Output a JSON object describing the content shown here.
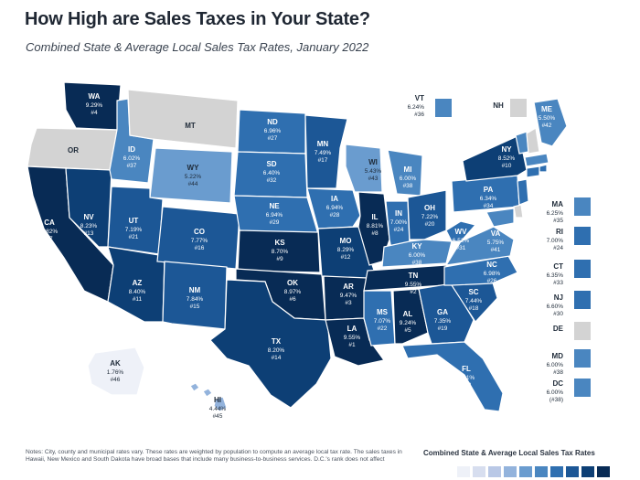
{
  "header": {
    "title": "How High are Sales Taxes in Your State?",
    "subtitle": "Combined State & Average Local Sales Tax Rates, January 2022"
  },
  "footer": {
    "notes": "Notes: City, county and municipal rates vary. These rates are weighted by population to compute an average local tax rate. The sales taxes in Hawaii, New Mexico and South Dakota have broad bases that include many business-to-business services. D.C.'s rank does not affect",
    "legend_title": "Combined State & Average Local Sales Tax Rates"
  },
  "colors": {
    "background": "#ffffff",
    "no_tax": "#d3d3d3",
    "border": "#ffffff",
    "text_dark": "#1e2a38",
    "text_light": "#ffffff",
    "legend_scale": [
      "#eef1f8",
      "#d7deef",
      "#b9c8e6",
      "#93b3dc",
      "#6a9ccf",
      "#4a86c0",
      "#2f6fb0",
      "#1c5796",
      "#0d3f75",
      "#082b55"
    ]
  },
  "states": [
    {
      "abbr": "WA",
      "rate": "9.29%",
      "rank": "#4"
    },
    {
      "abbr": "OR",
      "rate": "",
      "rank": ""
    },
    {
      "abbr": "CA",
      "rate": "8.82%",
      "rank": "#7"
    },
    {
      "abbr": "NV",
      "rate": "8.23%",
      "rank": "#13"
    },
    {
      "abbr": "ID",
      "rate": "6.02%",
      "rank": "#37"
    },
    {
      "abbr": "MT",
      "rate": "",
      "rank": ""
    },
    {
      "abbr": "WY",
      "rate": "5.22%",
      "rank": "#44"
    },
    {
      "abbr": "UT",
      "rate": "7.19%",
      "rank": "#21"
    },
    {
      "abbr": "AZ",
      "rate": "8.40%",
      "rank": "#11"
    },
    {
      "abbr": "CO",
      "rate": "7.77%",
      "rank": "#16"
    },
    {
      "abbr": "NM",
      "rate": "7.84%",
      "rank": "#15"
    },
    {
      "abbr": "ND",
      "rate": "6.96%",
      "rank": "#27"
    },
    {
      "abbr": "SD",
      "rate": "6.40%",
      "rank": "#32"
    },
    {
      "abbr": "NE",
      "rate": "6.94%",
      "rank": "#29"
    },
    {
      "abbr": "KS",
      "rate": "8.70%",
      "rank": "#9"
    },
    {
      "abbr": "OK",
      "rate": "8.97%",
      "rank": "#6"
    },
    {
      "abbr": "TX",
      "rate": "8.20%",
      "rank": "#14"
    },
    {
      "abbr": "MN",
      "rate": "7.49%",
      "rank": "#17"
    },
    {
      "abbr": "IA",
      "rate": "6.94%",
      "rank": "#28"
    },
    {
      "abbr": "MO",
      "rate": "8.29%",
      "rank": "#12"
    },
    {
      "abbr": "AR",
      "rate": "9.47%",
      "rank": "#3"
    },
    {
      "abbr": "LA",
      "rate": "9.55%",
      "rank": "#1"
    },
    {
      "abbr": "WI",
      "rate": "5.43%",
      "rank": "#43"
    },
    {
      "abbr": "IL",
      "rate": "8.81%",
      "rank": "#8"
    },
    {
      "abbr": "MI",
      "rate": "6.00%",
      "rank": "#38"
    },
    {
      "abbr": "IN",
      "rate": "7.00%",
      "rank": "#24"
    },
    {
      "abbr": "OH",
      "rate": "7.22%",
      "rank": "#20"
    },
    {
      "abbr": "KY",
      "rate": "6.00%",
      "rank": "#38"
    },
    {
      "abbr": "TN",
      "rate": "9.55%",
      "rank": "#2"
    },
    {
      "abbr": "MS",
      "rate": "7.07%",
      "rank": "#22"
    },
    {
      "abbr": "AL",
      "rate": "9.24%",
      "rank": "#5"
    },
    {
      "abbr": "GA",
      "rate": "7.35%",
      "rank": "#19"
    },
    {
      "abbr": "FL",
      "rate": "7.01%",
      "rank": "#23"
    },
    {
      "abbr": "SC",
      "rate": "7.44%",
      "rank": "#18"
    },
    {
      "abbr": "NC",
      "rate": "6.98%",
      "rank": "#26"
    },
    {
      "abbr": "VA",
      "rate": "5.75%",
      "rank": "#41"
    },
    {
      "abbr": "WV",
      "rate": "6.52%",
      "rank": "#31"
    },
    {
      "abbr": "PA",
      "rate": "6.34%",
      "rank": "#34"
    },
    {
      "abbr": "NY",
      "rate": "8.52%",
      "rank": "#10"
    },
    {
      "abbr": "ME",
      "rate": "5.50%",
      "rank": "#42"
    },
    {
      "abbr": "VT",
      "rate": "6.24%",
      "rank": "#36"
    },
    {
      "abbr": "NH",
      "rate": "",
      "rank": ""
    },
    {
      "abbr": "AK",
      "rate": "1.76%",
      "rank": "#46"
    },
    {
      "abbr": "HI",
      "rate": "4.44%",
      "rank": "#45"
    },
    {
      "abbr": "MA",
      "rate": "6.25%",
      "rank": "#35"
    },
    {
      "abbr": "RI",
      "rate": "7.00%",
      "rank": "#24"
    },
    {
      "abbr": "CT",
      "rate": "6.35%",
      "rank": "#33"
    },
    {
      "abbr": "NJ",
      "rate": "6.60%",
      "rank": "#30"
    },
    {
      "abbr": "DE",
      "rate": "",
      "rank": ""
    },
    {
      "abbr": "MD",
      "rate": "6.00%",
      "rank": "#38"
    },
    {
      "abbr": "DC",
      "rate": "6.00%",
      "rank": "(#38)"
    }
  ]
}
